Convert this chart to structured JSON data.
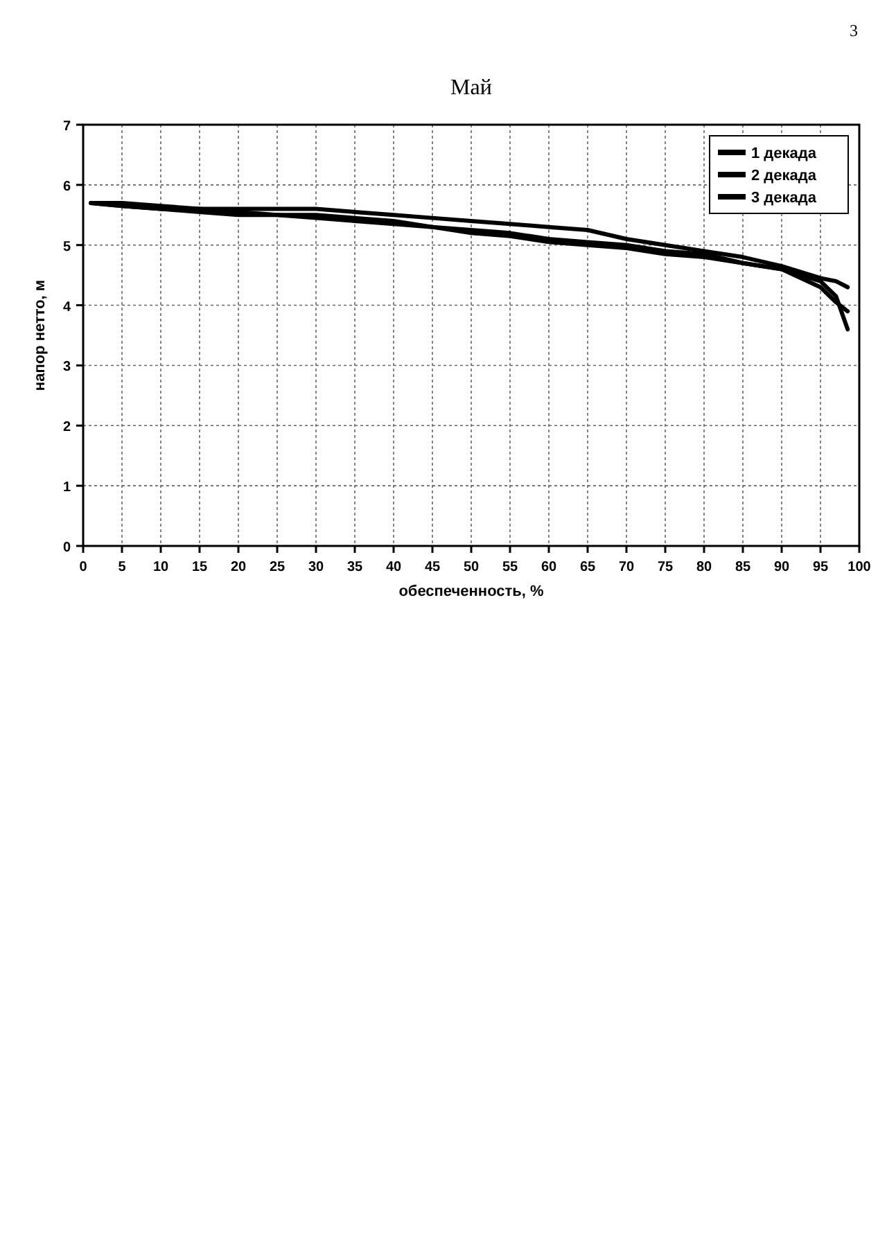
{
  "chart_data": {
    "type": "line",
    "title": "Май",
    "xlabel": "обеспеченность, %",
    "ylabel": "напор нетто, м",
    "annotations": [
      "3"
    ],
    "x": [
      1,
      5,
      10,
      15,
      20,
      25,
      30,
      35,
      40,
      45,
      50,
      55,
      60,
      65,
      70,
      75,
      80,
      85,
      90,
      95,
      97,
      98.5
    ],
    "series": [
      {
        "name": "1 декада",
        "color": "#000000",
        "values": [
          5.7,
          5.7,
          5.65,
          5.6,
          5.6,
          5.6,
          5.6,
          5.55,
          5.5,
          5.45,
          5.4,
          5.35,
          5.3,
          5.25,
          5.1,
          5.0,
          4.9,
          4.8,
          4.65,
          4.45,
          4.4,
          4.3
        ]
      },
      {
        "name": "2 декада",
        "color": "#000000",
        "values": [
          5.7,
          5.65,
          5.6,
          5.6,
          5.55,
          5.5,
          5.5,
          5.45,
          5.4,
          5.3,
          5.25,
          5.2,
          5.1,
          5.05,
          5.0,
          4.9,
          4.85,
          4.7,
          4.6,
          4.4,
          4.15,
          3.6
        ]
      },
      {
        "name": "3 декада",
        "color": "#000000",
        "values": [
          5.7,
          5.65,
          5.6,
          5.55,
          5.5,
          5.5,
          5.45,
          5.4,
          5.35,
          5.3,
          5.2,
          5.15,
          5.05,
          5.0,
          4.95,
          4.85,
          4.8,
          4.7,
          4.6,
          4.3,
          4.05,
          3.9
        ]
      }
    ],
    "xlim": [
      0,
      100
    ],
    "xticks": [
      0,
      5,
      10,
      15,
      20,
      25,
      30,
      35,
      40,
      45,
      50,
      55,
      60,
      65,
      70,
      75,
      80,
      85,
      90,
      95,
      100
    ],
    "ylim": [
      0,
      7
    ],
    "yticks": [
      0,
      1,
      2,
      3,
      4,
      5,
      6,
      7
    ],
    "grid": true,
    "legend": "top right",
    "marker": "none",
    "line_style": "solid"
  }
}
